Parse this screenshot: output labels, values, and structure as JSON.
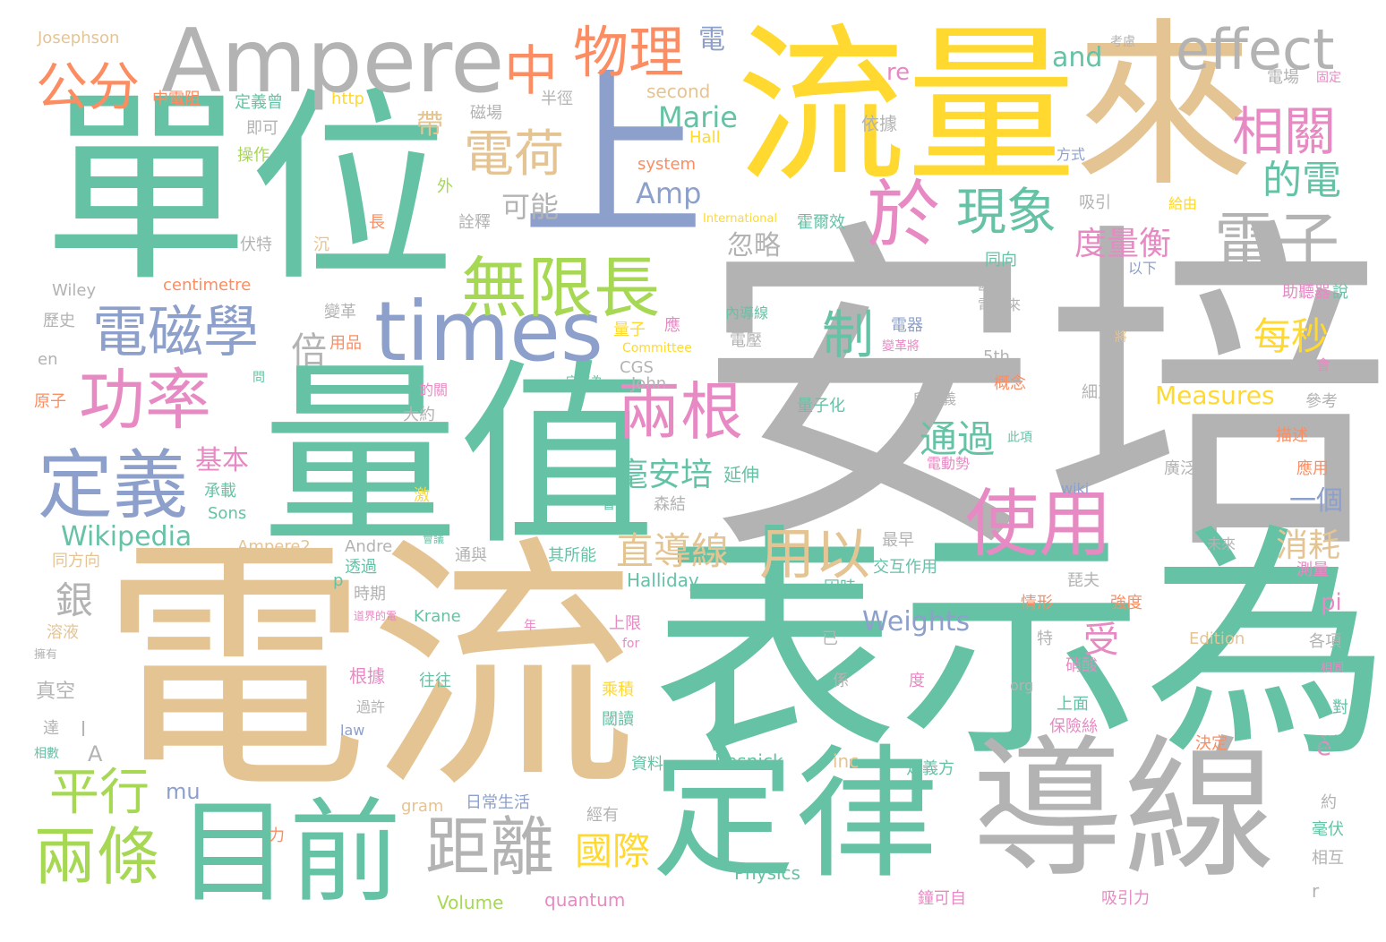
{
  "palette": {
    "green": "#66c2a5",
    "gray": "#b3b3b3",
    "tan": "#e5c494",
    "yellow": "#ffd92f",
    "blue": "#8da0cb",
    "pink": "#e78ac3",
    "orange": "#fc8d62",
    "lime": "#a6d854"
  },
  "words": [
    {
      "text": "安培",
      "color": "gray"
    },
    {
      "text": "電流",
      "color": "tan"
    },
    {
      "text": "表示為",
      "color": "green"
    },
    {
      "text": "單位",
      "color": "green"
    },
    {
      "text": "量值",
      "color": "green"
    },
    {
      "text": "流量",
      "color": "yellow"
    },
    {
      "text": "來",
      "color": "tan"
    },
    {
      "text": "上",
      "color": "blue"
    },
    {
      "text": "導線",
      "color": "gray"
    },
    {
      "text": "定律",
      "color": "green"
    },
    {
      "text": "目前",
      "color": "green"
    },
    {
      "text": "Ampere",
      "color": "gray"
    },
    {
      "text": "times",
      "color": "blue"
    },
    {
      "text": "effect",
      "color": "gray"
    },
    {
      "text": "中",
      "color": "orange"
    },
    {
      "text": "物理",
      "color": "orange"
    },
    {
      "text": "電",
      "color": "blue"
    },
    {
      "text": "公分",
      "color": "orange"
    },
    {
      "text": "電荷",
      "color": "tan"
    },
    {
      "text": "相關",
      "color": "pink"
    },
    {
      "text": "於",
      "color": "pink"
    },
    {
      "text": "現象",
      "color": "green"
    },
    {
      "text": "電子",
      "color": "gray"
    },
    {
      "text": "無限長",
      "color": "lime"
    },
    {
      "text": "電磁學",
      "color": "blue"
    },
    {
      "text": "功率",
      "color": "pink"
    },
    {
      "text": "定義",
      "color": "blue"
    },
    {
      "text": "兩根",
      "color": "pink"
    },
    {
      "text": "使用",
      "color": "pink"
    },
    {
      "text": "用以",
      "color": "tan"
    },
    {
      "text": "距離",
      "color": "gray"
    },
    {
      "text": "兩條",
      "color": "lime"
    },
    {
      "text": "平行",
      "color": "lime"
    },
    {
      "text": "國際",
      "color": "yellow"
    },
    {
      "text": "直導線",
      "color": "tan"
    },
    {
      "text": "毫安培",
      "color": "green"
    },
    {
      "text": "通過",
      "color": "green"
    },
    {
      "text": "制",
      "color": "green"
    },
    {
      "text": "度量衡",
      "color": "pink"
    },
    {
      "text": "每秒",
      "color": "yellow"
    },
    {
      "text": "的電",
      "color": "green"
    },
    {
      "text": "倍",
      "color": "gray"
    },
    {
      "text": "Wikipedia",
      "color": "green"
    },
    {
      "text": "Weights",
      "color": "blue"
    },
    {
      "text": "Measures",
      "color": "yellow"
    },
    {
      "text": "Marie",
      "color": "green"
    },
    {
      "text": "Amp",
      "color": "blue"
    },
    {
      "text": "可能",
      "color": "gray"
    },
    {
      "text": "忽略",
      "color": "gray"
    },
    {
      "text": "and",
      "color": "green"
    },
    {
      "text": "re",
      "color": "pink"
    },
    {
      "text": "銀",
      "color": "gray"
    },
    {
      "text": "受",
      "color": "pink"
    },
    {
      "text": "消耗",
      "color": "tan"
    },
    {
      "text": "一個",
      "color": "blue"
    },
    {
      "text": "帶",
      "color": "tan"
    },
    {
      "text": "基本",
      "color": "pink"
    },
    {
      "text": "pi",
      "color": "pink"
    },
    {
      "text": "mu",
      "color": "blue"
    },
    {
      "text": "A",
      "color": "gray"
    },
    {
      "text": "è",
      "color": "pink"
    },
    {
      "text": "Josephson",
      "color": "tan"
    },
    {
      "text": "中電阻",
      "color": "orange"
    },
    {
      "text": "定義曾",
      "color": "green"
    },
    {
      "text": "http",
      "color": "yellow"
    },
    {
      "text": "磁場",
      "color": "gray"
    },
    {
      "text": "半徑",
      "color": "gray"
    },
    {
      "text": "second",
      "color": "tan"
    },
    {
      "text": "依據",
      "color": "gray"
    },
    {
      "text": "電場",
      "color": "gray"
    },
    {
      "text": "固定",
      "color": "pink"
    },
    {
      "text": "考慮",
      "color": "gray"
    },
    {
      "text": "即可",
      "color": "gray"
    },
    {
      "text": "操作",
      "color": "lime"
    },
    {
      "text": "Hall",
      "color": "yellow"
    },
    {
      "text": "system",
      "color": "orange"
    },
    {
      "text": "方式",
      "color": "blue"
    },
    {
      "text": "外",
      "color": "lime"
    },
    {
      "text": "吸引",
      "color": "gray"
    },
    {
      "text": "給由",
      "color": "yellow"
    },
    {
      "text": "詮釋",
      "color": "gray"
    },
    {
      "text": "長",
      "color": "orange"
    },
    {
      "text": "International",
      "color": "yellow"
    },
    {
      "text": "霍爾效",
      "color": "green"
    },
    {
      "text": "伏特",
      "color": "gray"
    },
    {
      "text": "沉",
      "color": "tan"
    },
    {
      "text": "同向",
      "color": "green"
    },
    {
      "text": "以下",
      "color": "blue"
    },
    {
      "text": "說",
      "color": "green"
    },
    {
      "text": "Wiley",
      "color": "gray"
    },
    {
      "text": "centimetre",
      "color": "orange"
    },
    {
      "text": "歐姆",
      "color": "gray"
    },
    {
      "text": "助聽器",
      "color": "pink"
    },
    {
      "text": "歷史",
      "color": "gray"
    },
    {
      "text": "變革",
      "color": "gray"
    },
    {
      "text": "內導線",
      "color": "green"
    },
    {
      "text": "電荷來",
      "color": "gray"
    },
    {
      "text": "電器",
      "color": "blue"
    },
    {
      "text": "應",
      "color": "pink"
    },
    {
      "text": "量子",
      "color": "yellow"
    },
    {
      "text": "電壓",
      "color": "gray"
    },
    {
      "text": "變革將",
      "color": "pink"
    },
    {
      "text": "將",
      "color": "tan"
    },
    {
      "text": "en",
      "color": "gray"
    },
    {
      "text": "用品",
      "color": "orange"
    },
    {
      "text": "Committee",
      "color": "yellow"
    },
    {
      "text": "CGS",
      "color": "gray"
    },
    {
      "text": "5th",
      "color": "gray"
    },
    {
      "text": "會",
      "color": "pink"
    },
    {
      "text": "原子",
      "color": "orange"
    },
    {
      "text": "問",
      "color": "green"
    },
    {
      "text": "John",
      "color": "gray"
    },
    {
      "text": "的關",
      "color": "pink"
    },
    {
      "text": "定義為",
      "color": "green"
    },
    {
      "text": "所定義",
      "color": "gray"
    },
    {
      "text": "概念",
      "color": "orange"
    },
    {
      "text": "細直",
      "color": "gray"
    },
    {
      "text": "參考",
      "color": "gray"
    },
    {
      "text": "大約",
      "color": "gray"
    },
    {
      "text": "量子化",
      "color": "green"
    },
    {
      "text": "此項",
      "color": "green"
    },
    {
      "text": "描述",
      "color": "orange"
    },
    {
      "text": "延伸",
      "color": "green"
    },
    {
      "text": "承載",
      "color": "green"
    },
    {
      "text": "電動勢",
      "color": "pink"
    },
    {
      "text": "廣泛",
      "color": "gray"
    },
    {
      "text": "應用",
      "color": "orange"
    },
    {
      "text": "wiki",
      "color": "blue"
    },
    {
      "text": "Sons",
      "color": "green"
    },
    {
      "text": "激",
      "color": "yellow"
    },
    {
      "text": "會",
      "color": "green"
    },
    {
      "text": "森結",
      "color": "gray"
    },
    {
      "text": "Ampere2",
      "color": "tan"
    },
    {
      "text": "Andre",
      "color": "gray"
    },
    {
      "text": "會議",
      "color": "green"
    },
    {
      "text": "最早",
      "color": "gray"
    },
    {
      "text": "未來",
      "color": "gray"
    },
    {
      "text": "同方向",
      "color": "tan"
    },
    {
      "text": "透過",
      "color": "green"
    },
    {
      "text": "通與",
      "color": "gray"
    },
    {
      "text": "其所能",
      "color": "green"
    },
    {
      "text": "交互作用",
      "color": "green"
    },
    {
      "text": "測量",
      "color": "pink"
    },
    {
      "text": "p",
      "color": "green"
    },
    {
      "text": "時期",
      "color": "gray"
    },
    {
      "text": "Halliday",
      "color": "green"
    },
    {
      "text": "琵夫",
      "color": "gray"
    },
    {
      "text": "因時",
      "color": "green"
    },
    {
      "text": "情形",
      "color": "orange"
    },
    {
      "text": "強度",
      "color": "orange"
    },
    {
      "text": "道界的電",
      "color": "pink"
    },
    {
      "text": "Krane",
      "color": "green"
    },
    {
      "text": "上限",
      "color": "pink"
    },
    {
      "text": "溶液",
      "color": "tan"
    },
    {
      "text": "年",
      "color": "pink"
    },
    {
      "text": "已",
      "color": "gray"
    },
    {
      "text": "特",
      "color": "gray"
    },
    {
      "text": "Edition",
      "color": "tan"
    },
    {
      "text": "各項",
      "color": "gray"
    },
    {
      "text": "擁有",
      "color": "gray"
    },
    {
      "text": "for",
      "color": "pink"
    },
    {
      "text": "硝酸",
      "color": "pink"
    },
    {
      "text": "相同",
      "color": "pink"
    },
    {
      "text": "真空",
      "color": "gray"
    },
    {
      "text": "根據",
      "color": "pink"
    },
    {
      "text": "往往",
      "color": "green"
    },
    {
      "text": "係",
      "color": "gray"
    },
    {
      "text": "度",
      "color": "pink"
    },
    {
      "text": "org",
      "color": "gray"
    },
    {
      "text": "上面",
      "color": "green"
    },
    {
      "text": "乘積",
      "color": "yellow"
    },
    {
      "text": "過許",
      "color": "gray"
    },
    {
      "text": "對",
      "color": "green"
    },
    {
      "text": "達",
      "color": "gray"
    },
    {
      "text": "law",
      "color": "blue"
    },
    {
      "text": "閾讀",
      "color": "green"
    },
    {
      "text": "保險絲",
      "color": "pink"
    },
    {
      "text": "相數",
      "color": "green"
    },
    {
      "text": "決定",
      "color": "orange"
    },
    {
      "text": "電池",
      "color": "green"
    },
    {
      "text": "資料",
      "color": "green"
    },
    {
      "text": "Resnick",
      "color": "green"
    },
    {
      "text": "inc",
      "color": "tan"
    },
    {
      "text": "定義方",
      "color": "green"
    },
    {
      "text": "約",
      "color": "gray"
    },
    {
      "text": "gram",
      "color": "tan"
    },
    {
      "text": "日常生活",
      "color": "blue"
    },
    {
      "text": "經有",
      "color": "gray"
    },
    {
      "text": "毫伏",
      "color": "green"
    },
    {
      "text": "力",
      "color": "orange"
    },
    {
      "text": "Physics",
      "color": "green"
    },
    {
      "text": "相互",
      "color": "gray"
    },
    {
      "text": "Volume",
      "color": "lime"
    },
    {
      "text": "quantum",
      "color": "pink"
    },
    {
      "text": "鐘可自",
      "color": "pink"
    },
    {
      "text": "吸引力",
      "color": "pink"
    },
    {
      "text": "r",
      "color": "gray"
    },
    {
      "text": "l",
      "color": "gray"
    }
  ]
}
